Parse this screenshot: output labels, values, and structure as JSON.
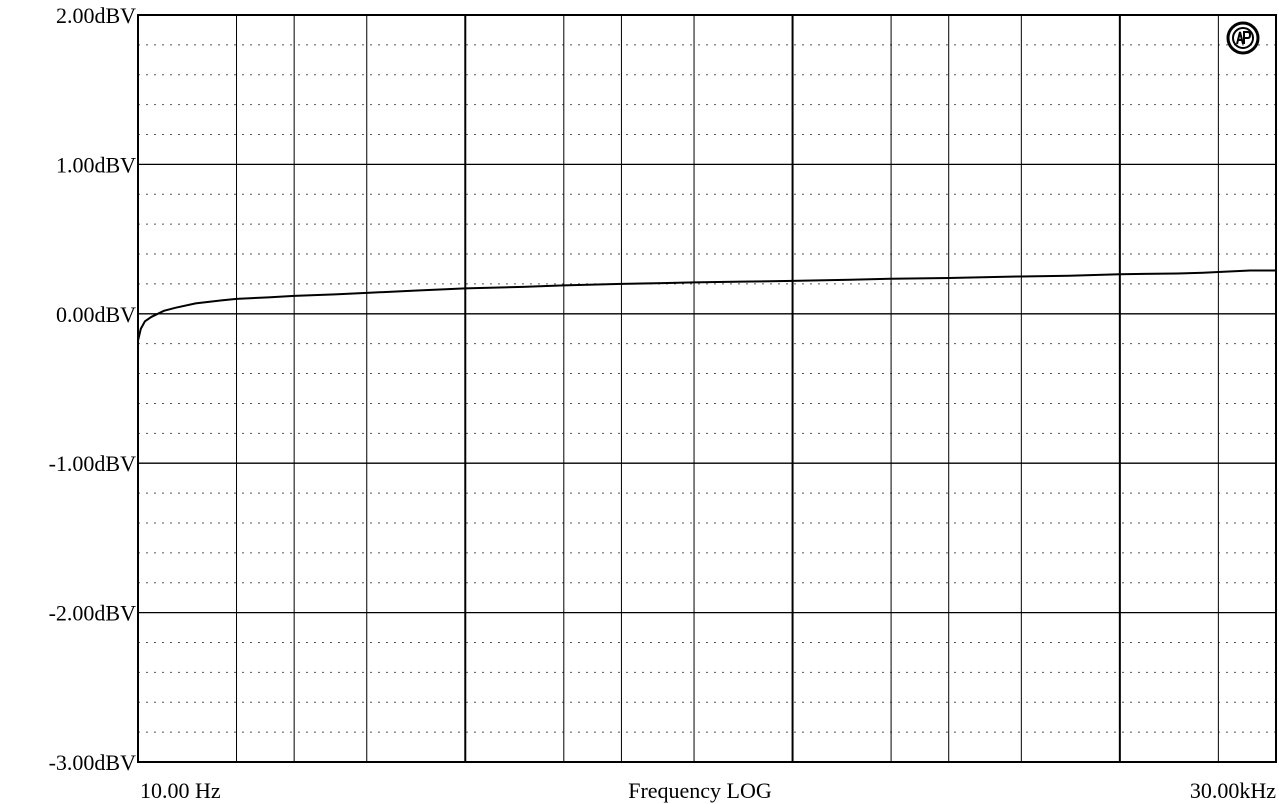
{
  "chart_data": {
    "type": "line",
    "xlabel": "Frequency LOG",
    "x_scale": "log",
    "xlim": [
      10,
      30000
    ],
    "ylim": [
      -3,
      2
    ],
    "y_ticks": [
      {
        "value": 2,
        "label": "2.00dBV"
      },
      {
        "value": 1,
        "label": "1.00dBV"
      },
      {
        "value": 0,
        "label": "0.00dBV"
      },
      {
        "value": -1,
        "label": "-1.00dBV"
      },
      {
        "value": -2,
        "label": "-2.00dBV"
      },
      {
        "value": -3,
        "label": "-3.00dBV"
      }
    ],
    "x_tick_labels": {
      "left": "10.00 Hz",
      "right": "30.00kHz"
    },
    "grid": true,
    "series": [
      {
        "x": [
          10,
          10.2,
          10.5,
          11,
          12,
          13,
          15,
          18,
          20,
          25,
          30,
          40,
          50,
          70,
          100,
          150,
          200,
          300,
          400,
          500,
          700,
          1000,
          1500,
          2000,
          3000,
          5000,
          7000,
          10000,
          15000,
          18000,
          20000,
          25000,
          30000
        ],
        "y": [
          -0.18,
          -0.1,
          -0.05,
          -0.02,
          0.02,
          0.04,
          0.07,
          0.09,
          0.1,
          0.11,
          0.12,
          0.13,
          0.14,
          0.155,
          0.17,
          0.18,
          0.19,
          0.2,
          0.205,
          0.21,
          0.215,
          0.22,
          0.228,
          0.235,
          0.24,
          0.25,
          0.255,
          0.265,
          0.27,
          0.275,
          0.28,
          0.29,
          0.29
        ]
      }
    ]
  },
  "logo": {
    "icon": "ap-logo-icon"
  }
}
